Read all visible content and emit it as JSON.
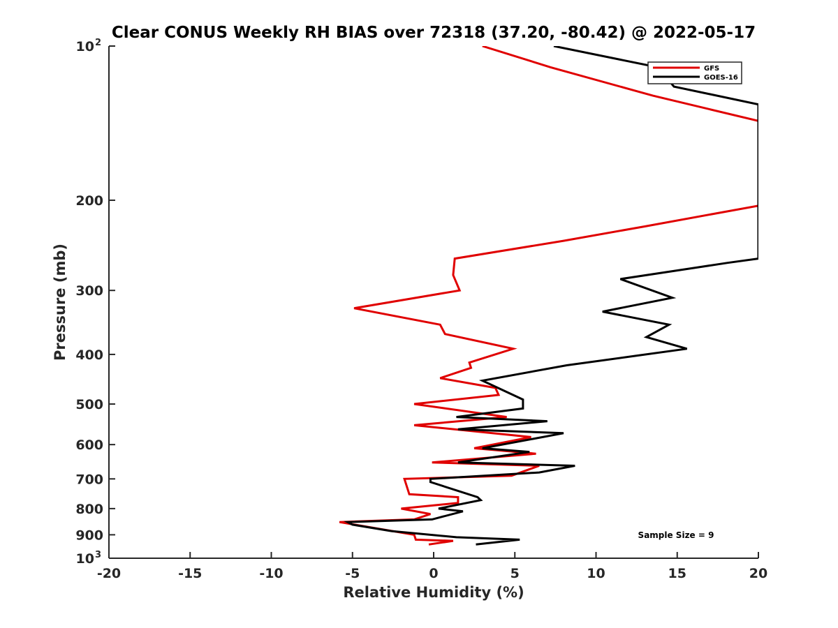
{
  "chart_data": {
    "type": "line",
    "title": "Clear CONUS Weekly RH BIAS over 72318 (37.20, -80.42) @ 2022-05-17",
    "xlabel": "Relative Humidity (%)",
    "ylabel": "Pressure (mb)",
    "xlim": [
      -20,
      20
    ],
    "ylim": [
      1000,
      100
    ],
    "y_scale": "log",
    "y_reversed": true,
    "grid": false,
    "legend_position": "top-right",
    "x_ticks": [
      -20,
      -15,
      -10,
      -5,
      0,
      5,
      10,
      15,
      20
    ],
    "x_tick_labels": [
      "-20",
      "-15",
      "-10",
      "-5",
      "0",
      "5",
      "10",
      "15",
      "20"
    ],
    "y_ticks": [
      {
        "value": 100,
        "base": "10",
        "exp": "2"
      },
      {
        "value": 200,
        "base": "200",
        "exp": ""
      },
      {
        "value": 300,
        "base": "300",
        "exp": ""
      },
      {
        "value": 400,
        "base": "400",
        "exp": ""
      },
      {
        "value": 500,
        "base": "500",
        "exp": ""
      },
      {
        "value": 600,
        "base": "600",
        "exp": ""
      },
      {
        "value": 700,
        "base": "700",
        "exp": ""
      },
      {
        "value": 800,
        "base": "800",
        "exp": ""
      },
      {
        "value": 900,
        "base": "900",
        "exp": ""
      },
      {
        "value": 1000,
        "base": "10",
        "exp": "3"
      }
    ],
    "annotation": "Sample Size = 9",
    "series": [
      {
        "name": "GFS",
        "color": "#e00000",
        "x": [
          -0.3,
          1.2,
          -1.1,
          -1.2,
          -5.8,
          -1.2,
          -0.2,
          -2.0,
          1.5,
          1.5,
          -1.5,
          -1.8,
          4.8,
          6.5,
          -0.1,
          6.3,
          2.5,
          6.0,
          -1.2,
          4.5,
          -1.2,
          4.0,
          3.8,
          0.4,
          2.3,
          2.2,
          4.9,
          0.7,
          0.4,
          -4.9,
          1.6,
          1.2,
          1.3,
          8.0,
          13.0,
          20.0,
          20.0,
          13.5,
          7.2,
          3.0
        ],
        "y": [
          940,
          925,
          920,
          900,
          850,
          840,
          820,
          800,
          780,
          760,
          750,
          700,
          690,
          660,
          650,
          625,
          610,
          580,
          550,
          530,
          500,
          480,
          465,
          445,
          425,
          415,
          390,
          365,
          350,
          325,
          300,
          280,
          260,
          240,
          225,
          205,
          140,
          125,
          110,
          100
        ]
      },
      {
        "name": "GOES-16",
        "color": "#000000",
        "x": [
          2.6,
          5.3,
          1.4,
          -2.6,
          -5.0,
          -5.3,
          -0.1,
          1.8,
          0.3,
          2.9,
          2.7,
          -0.2,
          -0.2,
          6.5,
          8.7,
          1.5,
          5.9,
          3.0,
          8.0,
          1.5,
          7.0,
          1.4,
          5.5,
          5.5,
          3.0,
          8.2,
          15.6,
          13.1,
          14.5,
          10.4,
          14.7,
          11.5,
          18.1,
          20.0,
          20.0,
          14.8,
          13.8,
          7.4
        ],
        "y": [
          940,
          920,
          910,
          885,
          860,
          850,
          840,
          810,
          800,
          770,
          760,
          710,
          700,
          680,
          660,
          650,
          620,
          610,
          570,
          560,
          540,
          530,
          510,
          490,
          450,
          420,
          390,
          370,
          350,
          330,
          310,
          285,
          265,
          260,
          130,
          120,
          110,
          100
        ]
      }
    ]
  }
}
